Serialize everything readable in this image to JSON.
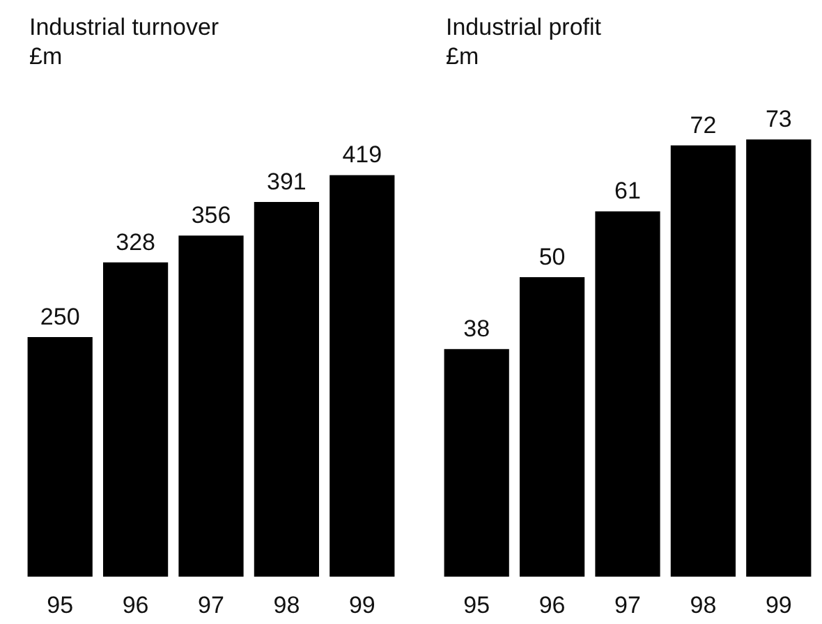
{
  "chart_data": [
    {
      "type": "bar",
      "title": "Industrial turnover",
      "subtitle": "£m",
      "categories": [
        "95",
        "96",
        "97",
        "98",
        "99"
      ],
      "values": [
        250,
        328,
        356,
        391,
        419
      ],
      "color": "#000000",
      "data_labels": true
    },
    {
      "type": "bar",
      "title": "Industrial profit",
      "subtitle": "£m",
      "categories": [
        "95",
        "96",
        "97",
        "98",
        "99"
      ],
      "values": [
        38,
        50,
        61,
        72,
        73
      ],
      "color": "#000000",
      "data_labels": true
    }
  ]
}
